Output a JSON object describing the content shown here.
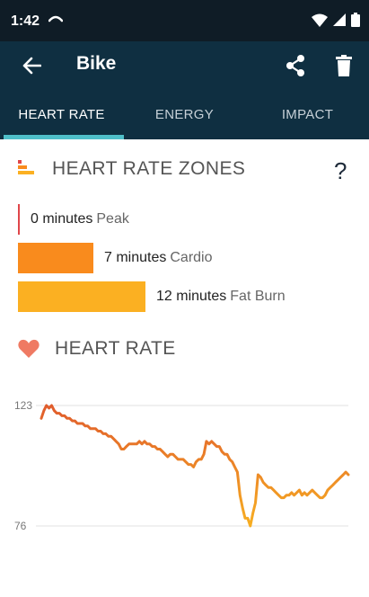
{
  "status": {
    "time": "1:42"
  },
  "app_bar": {
    "title": "Bike"
  },
  "tabs": [
    {
      "label": "HEART RATE",
      "active": true
    },
    {
      "label": "ENERGY",
      "active": false
    },
    {
      "label": "IMPACT",
      "active": false
    }
  ],
  "zones_section": {
    "title": "HEART RATE ZONES",
    "help": "?"
  },
  "zones": [
    {
      "minutes": "0 minutes",
      "name": "Peak",
      "color": "#e0464a"
    },
    {
      "minutes": "7 minutes",
      "name": "Cardio",
      "color": "#f98b1d"
    },
    {
      "minutes": "12 minutes",
      "name": "Fat Burn",
      "color": "#fbb022"
    }
  ],
  "heart_rate_section": {
    "title": "HEART RATE"
  },
  "colors": {
    "status_bar": "#0f1c26",
    "app_bar": "#0f2f41",
    "tab_indicator": "#4fbfc9",
    "heart_icon": "#ef7a63"
  },
  "chart_data": {
    "type": "line",
    "ylim": [
      76,
      123
    ],
    "yticks": [
      "123",
      "76"
    ],
    "grid": true,
    "line_gradient": [
      "#e05c2c",
      "#f7ae22"
    ],
    "x": [
      0,
      1,
      2,
      3,
      4,
      5,
      6,
      7,
      8,
      9,
      10,
      11,
      12,
      13,
      14,
      15,
      16,
      17,
      18,
      19,
      20,
      21,
      22,
      23,
      24,
      25,
      26,
      27,
      28,
      29,
      30,
      31,
      32,
      33,
      34,
      35,
      36,
      37,
      38,
      39,
      40,
      41,
      42,
      43,
      44,
      45,
      46,
      47,
      48,
      49,
      50,
      51,
      52,
      53,
      54,
      55,
      56,
      57,
      58,
      59,
      60,
      61,
      62,
      63,
      64,
      65,
      66,
      67,
      68,
      69,
      70,
      71,
      72,
      73,
      74,
      75,
      76,
      77,
      78,
      79,
      80,
      81,
      82,
      83,
      84,
      85,
      86,
      87,
      88,
      89,
      90,
      91,
      92,
      93,
      94,
      95,
      96,
      97,
      98,
      99,
      100,
      101,
      102,
      103,
      104,
      105,
      106,
      107,
      108,
      109,
      110,
      111,
      112,
      113,
      114,
      115,
      116,
      117,
      118,
      119
    ],
    "values": [
      118,
      121,
      123,
      122,
      123,
      121,
      120,
      120,
      119,
      119,
      118,
      118,
      117,
      117,
      116,
      116,
      116,
      115,
      115,
      114,
      114,
      114,
      113,
      113,
      112,
      112,
      111,
      111,
      110,
      109,
      108,
      106,
      106,
      107,
      108,
      108,
      108,
      108,
      109,
      108,
      109,
      108,
      108,
      107,
      107,
      106,
      106,
      105,
      104,
      103,
      104,
      104,
      103,
      102,
      102,
      102,
      101,
      100,
      100,
      99,
      101,
      102,
      102,
      104,
      109,
      108,
      109,
      108,
      107,
      107,
      105,
      104,
      104,
      102,
      101,
      99,
      97,
      88,
      83,
      79,
      79,
      76,
      81,
      85,
      96,
      95,
      93,
      92,
      91,
      91,
      90,
      89,
      88,
      87,
      87,
      88,
      88,
      89,
      88,
      89,
      90,
      88,
      89,
      88,
      89,
      90,
      89,
      88,
      87,
      87,
      88,
      90,
      91,
      92,
      93,
      94,
      95,
      96,
      97,
      96
    ]
  }
}
